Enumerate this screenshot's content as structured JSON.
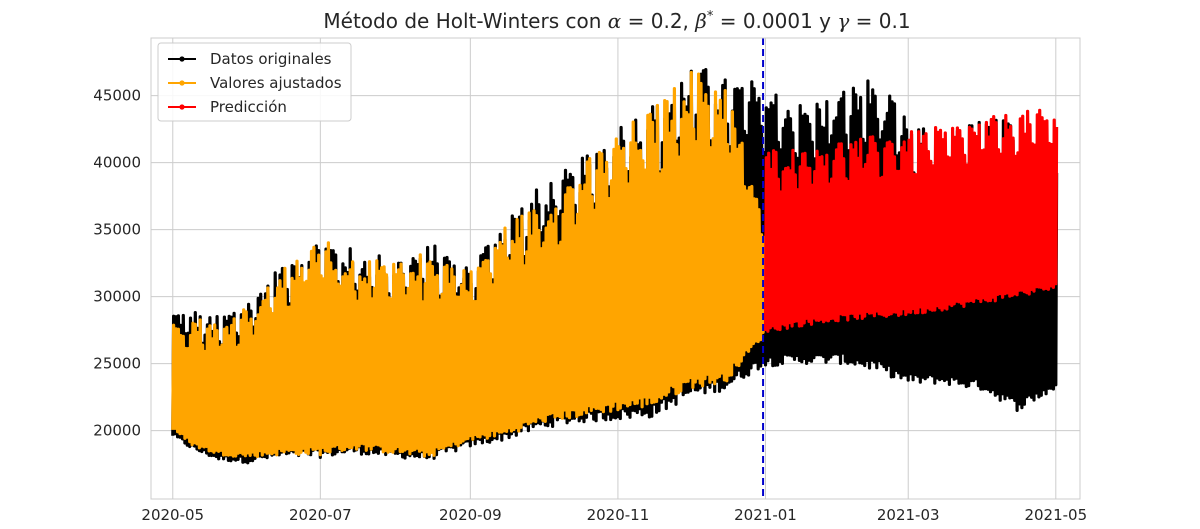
{
  "chart_data": {
    "type": "line",
    "title": "Método de Holt-Winters con α = 0.2, β* = 0.0001 y γ = 0.1",
    "title_parts": {
      "prefix": "Método de Holt-Winters con ",
      "alpha_sym": "α",
      "alpha_val": " = 0.2, ",
      "beta_sym": "β",
      "beta_sup": "*",
      "beta_val": " = 0.0001",
      "mid": " y ",
      "gamma_sym": "γ",
      "gamma_val": " = 0.1"
    },
    "xlabel": "",
    "ylabel": "",
    "x_range": [
      "2020-04-22",
      "2021-05-11"
    ],
    "ylim": [
      14900,
      49300
    ],
    "x_ticks": [
      "2020-05",
      "2020-07",
      "2020-09",
      "2020-11",
      "2021-01",
      "2021-03",
      "2021-05"
    ],
    "y_ticks": [
      20000,
      25000,
      30000,
      35000,
      40000,
      45000
    ],
    "grid": true,
    "legend_position": "top-left",
    "split_date": "2020-12-31",
    "split_line_color": "#0000cc",
    "series": [
      {
        "name": "Datos originales",
        "color": "#000000",
        "sampling": "daily envelope (min / max of hourly values)",
        "dates": [
          "2020-05-01",
          "2020-05-10",
          "2020-05-20",
          "2020-06-01",
          "2020-06-15",
          "2020-07-01",
          "2020-07-15",
          "2020-08-01",
          "2020-08-15",
          "2020-09-01",
          "2020-09-15",
          "2020-10-01",
          "2020-10-15",
          "2020-11-01",
          "2020-11-15",
          "2020-12-01",
          "2020-12-15",
          "2020-12-31",
          "2021-01-15",
          "2021-02-01",
          "2021-02-15",
          "2021-03-01",
          "2021-03-15",
          "2021-04-01",
          "2021-04-15",
          "2021-05-01"
        ],
        "low": [
          19500,
          18500,
          17800,
          17600,
          18000,
          18000,
          18300,
          18000,
          17800,
          18800,
          19300,
          20200,
          20600,
          20800,
          21000,
          22500,
          23000,
          24800,
          25000,
          25000,
          24500,
          23500,
          23500,
          23000,
          21500,
          23000
        ],
        "high": [
          29000,
          29000,
          28500,
          30000,
          32500,
          34500,
          33500,
          33000,
          34000,
          32500,
          36000,
          38500,
          40000,
          43000,
          44500,
          47500,
          46500,
          46000,
          44500,
          45500,
          46500,
          43000,
          42000,
          43500,
          43000,
          41000
        ]
      },
      {
        "name": "Valores ajustados",
        "color": "#ffa500",
        "sampling": "daily envelope (min / max of hourly values)",
        "dates": [
          "2020-05-01",
          "2020-05-10",
          "2020-05-20",
          "2020-06-01",
          "2020-06-15",
          "2020-07-01",
          "2020-07-15",
          "2020-08-01",
          "2020-08-15",
          "2020-09-01",
          "2020-09-15",
          "2020-10-01",
          "2020-10-15",
          "2020-11-01",
          "2020-11-15",
          "2020-12-01",
          "2020-12-15",
          "2020-12-31"
        ],
        "low": [
          20000,
          18800,
          18200,
          18000,
          18200,
          18200,
          18600,
          18300,
          18000,
          19200,
          19600,
          20600,
          21000,
          21500,
          21800,
          23200,
          23500,
          27000
        ],
        "high": [
          28000,
          28500,
          28000,
          29500,
          32000,
          34500,
          33000,
          32500,
          33500,
          32000,
          35500,
          37000,
          39500,
          42500,
          44000,
          47000,
          46000,
          36000
        ]
      },
      {
        "name": "Predicción",
        "color": "#ff0000",
        "sampling": "daily envelope (min / max of hourly values)",
        "dates": [
          "2021-01-01",
          "2021-01-15",
          "2021-02-01",
          "2021-02-15",
          "2021-03-01",
          "2021-03-15",
          "2021-04-01",
          "2021-04-15",
          "2021-05-01"
        ],
        "low": [
          27300,
          27800,
          28200,
          28400,
          28600,
          29000,
          29500,
          30000,
          30500
        ],
        "high": [
          41000,
          41300,
          41700,
          42000,
          42300,
          42700,
          43300,
          43800,
          44000
        ]
      }
    ]
  }
}
